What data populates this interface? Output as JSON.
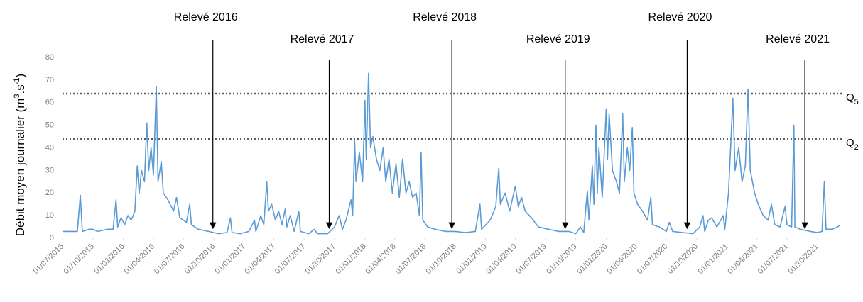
{
  "chart_data": {
    "type": "line",
    "ylabel": [
      {
        "text": "Débit moyen journalier (m"
      },
      {
        "text": "3",
        "sup": true
      },
      {
        "text": ".s"
      },
      {
        "text": "-1",
        "sup": true
      },
      {
        "text": ")"
      }
    ],
    "xlim": [
      "2015-07-01",
      "2021-12-20"
    ],
    "ylim": [
      0,
      80
    ],
    "yticks": [
      0,
      10,
      20,
      30,
      40,
      50,
      60,
      70,
      80
    ],
    "xticks": [
      {
        "value": "2015-07-01",
        "label": "01/07/2015"
      },
      {
        "value": "2015-10-01",
        "label": "01/10/2015"
      },
      {
        "value": "2016-01-01",
        "label": "01/01/2016"
      },
      {
        "value": "2016-04-01",
        "label": "01/04/2016"
      },
      {
        "value": "2016-07-01",
        "label": "01/07/2016"
      },
      {
        "value": "2016-10-01",
        "label": "01/10/2016"
      },
      {
        "value": "2017-01-01",
        "label": "01/01/2017"
      },
      {
        "value": "2017-04-01",
        "label": "01/04/2017"
      },
      {
        "value": "2017-07-01",
        "label": "01/07/2017"
      },
      {
        "value": "2017-10-01",
        "label": "01/10/2017"
      },
      {
        "value": "2018-01-01",
        "label": "01/01/2018"
      },
      {
        "value": "2018-04-01",
        "label": "01/04/2018"
      },
      {
        "value": "2018-07-01",
        "label": "01/07/2018"
      },
      {
        "value": "2018-10-01",
        "label": "01/10/2018"
      },
      {
        "value": "2019-01-01",
        "label": "01/01/2019"
      },
      {
        "value": "2019-04-01",
        "label": "01/04/2019"
      },
      {
        "value": "2019-07-01",
        "label": "01/07/2019"
      },
      {
        "value": "2019-10-01",
        "label": "01/10/2019"
      },
      {
        "value": "2020-01-01",
        "label": "01/01/2020"
      },
      {
        "value": "2020-04-01",
        "label": "01/04/2020"
      },
      {
        "value": "2020-07-01",
        "label": "01/07/2020"
      },
      {
        "value": "2020-10-01",
        "label": "01/10/2020"
      },
      {
        "value": "2021-01-01",
        "label": "01/01/2021"
      },
      {
        "value": "2021-04-01",
        "label": "01/04/2021"
      },
      {
        "value": "2021-07-01",
        "label": "01/07/2021"
      },
      {
        "value": "2021-10-01",
        "label": "01/10/2021"
      }
    ],
    "reference_lines": [
      {
        "value": 64,
        "label": "Q",
        "sub": "5"
      },
      {
        "value": 44,
        "label": "Q",
        "sub": "2"
      }
    ],
    "annotations": [
      {
        "text": "Relevé 2016",
        "x": "2016-09-28"
      },
      {
        "text": "Relevé 2017",
        "x": "2017-09-15"
      },
      {
        "text": "Relevé 2018",
        "x": "2018-09-21"
      },
      {
        "text": "Relevé 2019",
        "x": "2019-08-30"
      },
      {
        "text": "Relevé 2020",
        "x": "2020-09-02"
      },
      {
        "text": "Relevé 2021",
        "x": "2021-08-24"
      }
    ],
    "color": "#5b9bd5",
    "x": [
      "2015-07-01",
      "2015-08-15",
      "2015-08-24",
      "2015-08-30",
      "2015-09-20",
      "2015-10-01",
      "2015-10-15",
      "2015-11-15",
      "2015-12-01",
      "2015-12-10",
      "2015-12-15",
      "2015-12-25",
      "2016-01-05",
      "2016-01-15",
      "2016-01-25",
      "2016-02-05",
      "2016-02-12",
      "2016-02-18",
      "2016-02-25",
      "2016-03-05",
      "2016-03-12",
      "2016-03-18",
      "2016-03-25",
      "2016-04-01",
      "2016-04-10",
      "2016-04-15",
      "2016-04-25",
      "2016-05-01",
      "2016-05-15",
      "2016-06-01",
      "2016-06-10",
      "2016-06-20",
      "2016-07-01",
      "2016-07-10",
      "2016-07-20",
      "2016-07-25",
      "2016-08-15",
      "2016-09-15",
      "2016-10-15",
      "2016-11-10",
      "2016-11-20",
      "2016-11-25",
      "2016-12-20",
      "2017-01-15",
      "2017-02-01",
      "2017-02-05",
      "2017-02-20",
      "2017-03-01",
      "2017-03-10",
      "2017-03-15",
      "2017-03-25",
      "2017-04-05",
      "2017-04-15",
      "2017-04-25",
      "2017-05-05",
      "2017-05-10",
      "2017-05-20",
      "2017-06-01",
      "2017-06-15",
      "2017-06-20",
      "2017-07-15",
      "2017-08-01",
      "2017-08-10",
      "2017-09-10",
      "2017-10-01",
      "2017-10-15",
      "2017-10-25",
      "2017-11-05",
      "2017-11-20",
      "2017-11-25",
      "2017-12-01",
      "2017-12-05",
      "2017-12-15",
      "2017-12-25",
      "2018-01-01",
      "2018-01-05",
      "2018-01-12",
      "2018-01-18",
      "2018-01-25",
      "2018-02-05",
      "2018-02-15",
      "2018-02-25",
      "2018-03-05",
      "2018-03-15",
      "2018-03-25",
      "2018-04-05",
      "2018-04-15",
      "2018-04-25",
      "2018-05-05",
      "2018-05-15",
      "2018-05-25",
      "2018-06-05",
      "2018-06-15",
      "2018-06-20",
      "2018-06-25",
      "2018-07-10",
      "2018-08-01",
      "2018-09-01",
      "2018-10-01",
      "2018-11-01",
      "2018-12-01",
      "2018-12-15",
      "2018-12-20",
      "2019-01-15",
      "2019-02-01",
      "2019-02-10",
      "2019-02-15",
      "2019-03-01",
      "2019-03-15",
      "2019-04-01",
      "2019-04-10",
      "2019-04-20",
      "2019-05-01",
      "2019-05-20",
      "2019-06-10",
      "2019-07-10",
      "2019-08-10",
      "2019-09-10",
      "2019-10-01",
      "2019-10-15",
      "2019-10-25",
      "2019-11-05",
      "2019-11-10",
      "2019-11-20",
      "2019-11-25",
      "2019-12-01",
      "2019-12-05",
      "2019-12-10",
      "2019-12-20",
      "2020-01-01",
      "2020-01-05",
      "2020-01-10",
      "2020-01-20",
      "2020-02-01",
      "2020-02-10",
      "2020-02-20",
      "2020-02-25",
      "2020-03-05",
      "2020-03-12",
      "2020-03-20",
      "2020-03-25",
      "2020-04-05",
      "2020-04-20",
      "2020-05-05",
      "2020-05-15",
      "2020-05-20",
      "2020-06-10",
      "2020-07-01",
      "2020-07-10",
      "2020-07-20",
      "2020-08-20",
      "2020-09-20",
      "2020-10-10",
      "2020-10-20",
      "2020-10-25",
      "2020-11-05",
      "2020-11-15",
      "2020-12-01",
      "2020-12-20",
      "2020-12-25",
      "2021-01-05",
      "2021-01-12",
      "2021-01-18",
      "2021-01-25",
      "2021-02-05",
      "2021-02-15",
      "2021-02-25",
      "2021-03-05",
      "2021-03-12",
      "2021-03-25",
      "2021-04-05",
      "2021-04-20",
      "2021-05-05",
      "2021-05-15",
      "2021-05-25",
      "2021-06-10",
      "2021-06-25",
      "2021-07-01",
      "2021-07-15",
      "2021-07-22",
      "2021-07-25",
      "2021-08-10",
      "2021-09-10",
      "2021-10-01",
      "2021-10-15",
      "2021-10-22",
      "2021-10-27",
      "2021-11-15",
      "2021-12-01",
      "2021-12-10"
    ],
    "values": [
      3,
      3,
      19,
      3,
      4,
      4,
      3,
      4,
      4,
      17,
      5,
      9,
      6,
      10,
      8,
      12,
      32,
      20,
      30,
      25,
      51,
      30,
      40,
      28,
      67,
      25,
      34,
      20,
      17,
      12,
      18,
      9,
      8,
      7,
      15,
      6,
      4,
      3,
      2,
      2.5,
      9,
      2.5,
      2,
      3,
      8,
      3,
      10,
      6,
      25,
      12,
      15,
      8,
      12,
      6,
      13,
      5,
      10,
      3,
      12,
      3,
      2,
      4,
      2,
      2,
      5,
      10,
      4,
      8,
      17,
      10,
      43,
      25,
      38,
      25,
      61,
      35,
      73,
      40,
      45,
      35,
      30,
      40,
      25,
      35,
      20,
      33,
      18,
      35,
      20,
      25,
      18,
      20,
      10,
      38,
      8,
      5,
      4,
      3,
      3,
      2.5,
      3,
      15,
      4,
      8,
      14,
      31,
      15,
      20,
      12,
      23,
      14,
      18,
      12,
      9,
      5,
      4,
      3,
      3,
      2,
      5,
      2.5,
      21,
      8,
      32,
      15,
      50,
      20,
      40,
      18,
      57,
      35,
      55,
      30,
      25,
      20,
      55,
      25,
      40,
      30,
      49,
      20,
      15,
      12,
      8,
      18,
      6,
      5,
      3,
      7,
      3,
      2.5,
      2,
      5,
      10,
      3,
      8,
      9,
      5,
      10,
      4,
      20,
      42,
      62,
      30,
      40,
      25,
      32,
      66,
      30,
      20,
      15,
      10,
      8,
      15,
      6,
      5,
      14,
      6,
      5,
      50,
      5,
      4,
      3,
      2.5,
      3,
      25,
      4,
      4,
      5,
      6
    ]
  }
}
